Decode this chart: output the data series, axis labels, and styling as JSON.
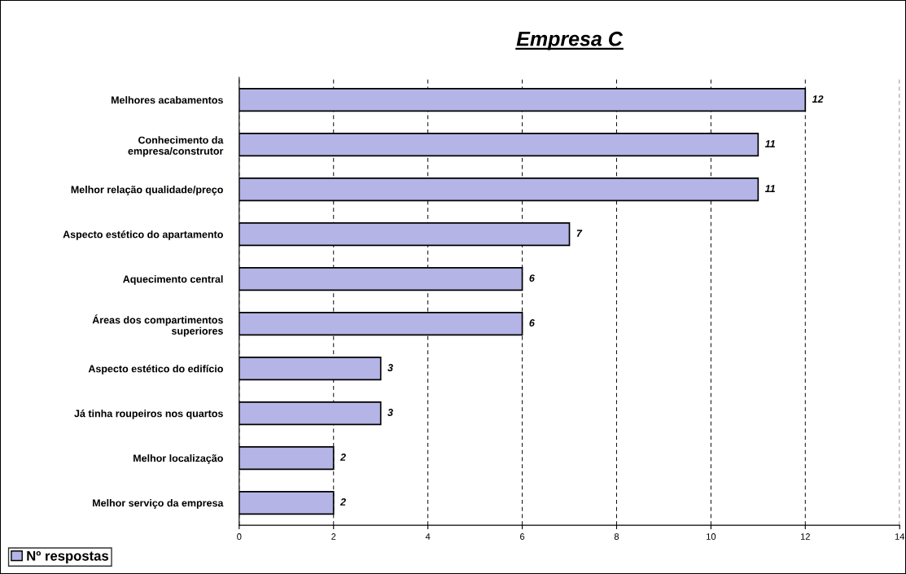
{
  "chart_data": {
    "type": "bar",
    "orientation": "horizontal",
    "title": "Empresa C",
    "categories": [
      "Melhores acabamentos",
      "Conhecimento da\nempresa/construtor",
      "Melhor relação qualidade/preço",
      "Aspecto estético do apartamento",
      "Aquecimento central",
      "Áreas dos compartimentos\nsuperiores",
      "Aspecto estético do edifício",
      "Já tinha roupeiros nos quartos",
      "Melhor localização",
      "Melhor serviço da empresa"
    ],
    "series": [
      {
        "name": "Nº respostas",
        "color": "#b4b4e6",
        "values": [
          12,
          11,
          11,
          7,
          6,
          6,
          3,
          3,
          2,
          2
        ]
      }
    ],
    "xlim": [
      0,
      14
    ],
    "xticks": [
      0,
      2,
      4,
      6,
      8,
      10,
      12,
      14
    ],
    "grid": "x",
    "legend": "bottom left",
    "data_labels": true
  }
}
